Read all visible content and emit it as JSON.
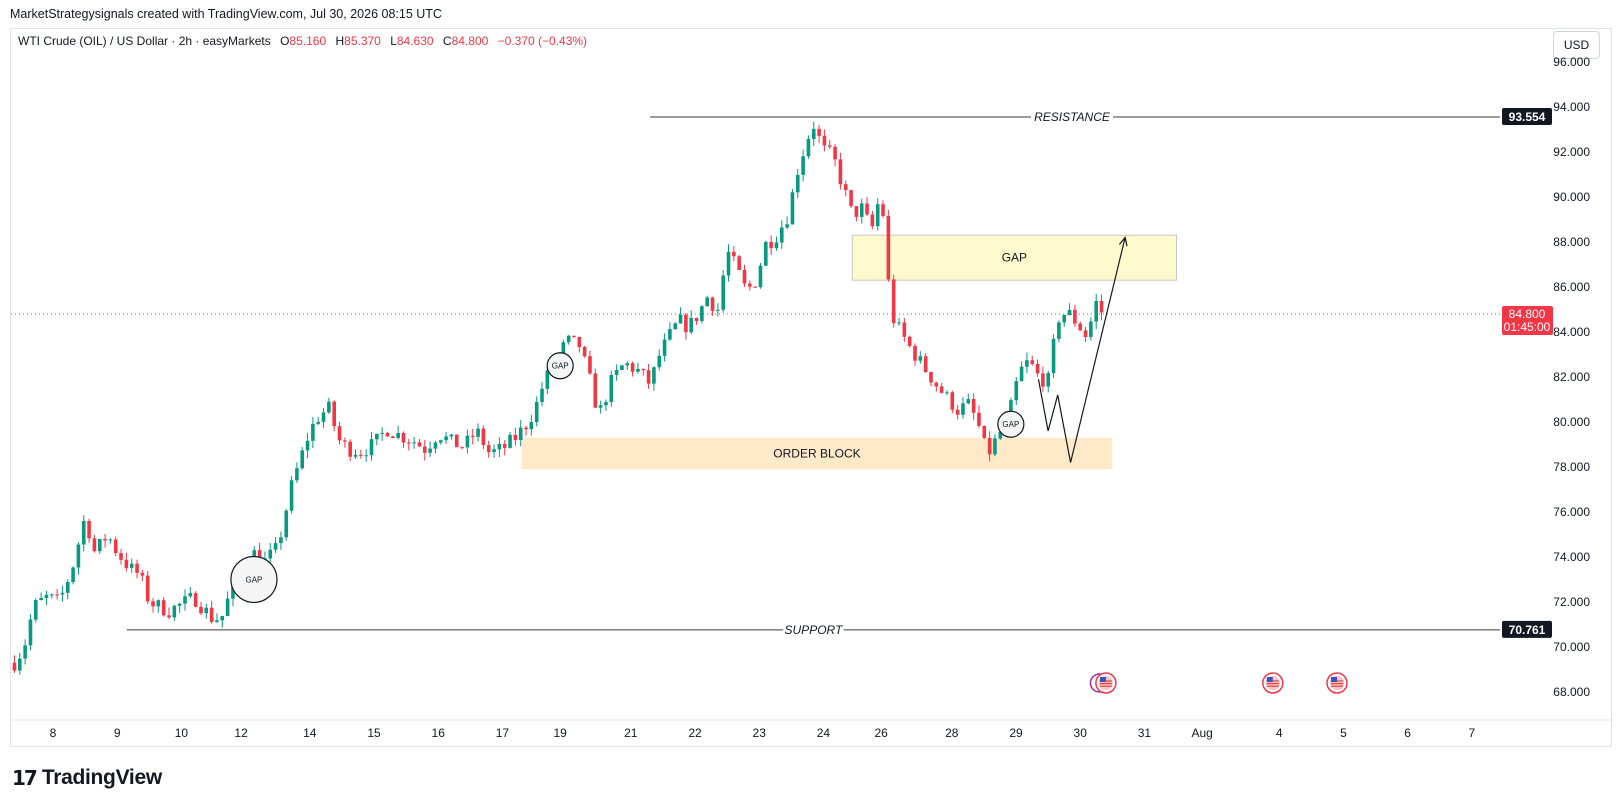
{
  "header": {
    "credit": "MarketStrategysignals created with TradingView.com, Jul 30, 2026 08:15 UTC",
    "symbol": "WTI Crude (OIL) / US Dollar · 2h · easyMarkets",
    "ohlc": [
      {
        "k": "O",
        "v": "85.160"
      },
      {
        "k": "H",
        "v": "85.370"
      },
      {
        "k": "L",
        "v": "84.630"
      },
      {
        "k": "C",
        "v": "84.800"
      }
    ],
    "change": "−0.370 (−0.43%)",
    "currency": "USD"
  },
  "branding": {
    "logo_text": "TradingView",
    "logo_icon": "tradingview-logo-icon"
  },
  "colors": {
    "up": "#089981",
    "down": "#f23645",
    "text": "#131722",
    "grid": "#e0e3eb"
  },
  "chart_data": {
    "type": "candlestick",
    "title": "",
    "ylim": [
      67,
      97
    ],
    "y_ticks": [
      "68.000",
      "70.000",
      "72.000",
      "74.000",
      "76.000",
      "78.000",
      "80.000",
      "82.000",
      "84.000",
      "86.000",
      "88.000",
      "90.000",
      "92.000",
      "94.000",
      "96.000"
    ],
    "x_ticks": [
      {
        "label": "8",
        "t": 0.0
      },
      {
        "label": "9",
        "t": 1.0
      },
      {
        "label": "10",
        "t": 2.0
      },
      {
        "label": "12",
        "t": 2.93
      },
      {
        "label": "14",
        "t": 4.0
      },
      {
        "label": "15",
        "t": 5.0
      },
      {
        "label": "16",
        "t": 6.0
      },
      {
        "label": "17",
        "t": 7.0
      },
      {
        "label": "19",
        "t": 7.9
      },
      {
        "label": "21",
        "t": 9.0
      },
      {
        "label": "22",
        "t": 10.0
      },
      {
        "label": "23",
        "t": 11.0
      },
      {
        "label": "24",
        "t": 12.0
      },
      {
        "label": "26",
        "t": 12.9
      },
      {
        "label": "28",
        "t": 14.0
      },
      {
        "label": "29",
        "t": 15.0
      },
      {
        "label": "30",
        "t": 16.0
      },
      {
        "label": "31",
        "t": 17.0
      },
      {
        "label": "Aug",
        "t": 17.9
      },
      {
        "label": "4",
        "t": 19.1
      },
      {
        "label": "5",
        "t": 20.1
      },
      {
        "label": "6",
        "t": 21.1
      },
      {
        "label": "7",
        "t": 22.1
      }
    ],
    "close_path": [
      [
        -0.6,
        69.3
      ],
      [
        -0.45,
        70.0
      ],
      [
        -0.3,
        71.8
      ],
      [
        -0.1,
        72.2
      ],
      [
        0.1,
        72.0
      ],
      [
        0.3,
        73.5
      ],
      [
        0.5,
        75.8
      ],
      [
        0.65,
        74.2
      ],
      [
        0.85,
        75.0
      ],
      [
        1.0,
        74.2
      ],
      [
        1.2,
        73.5
      ],
      [
        1.35,
        73.2
      ],
      [
        1.5,
        72.0
      ],
      [
        1.65,
        71.8
      ],
      [
        1.8,
        71.6
      ],
      [
        2.0,
        71.9
      ],
      [
        2.2,
        72.2
      ],
      [
        2.35,
        71.7
      ],
      [
        2.5,
        71.2
      ],
      [
        2.65,
        71.4
      ],
      [
        2.8,
        72.8
      ],
      [
        2.95,
        73.6
      ],
      [
        3.15,
        74.2
      ],
      [
        3.3,
        73.8
      ],
      [
        3.5,
        74.4
      ],
      [
        3.7,
        77.0
      ],
      [
        3.85,
        78.3
      ],
      [
        4.0,
        79.6
      ],
      [
        4.15,
        80.3
      ],
      [
        4.3,
        80.6
      ],
      [
        4.45,
        79.2
      ],
      [
        4.6,
        78.8
      ],
      [
        4.8,
        78.7
      ],
      [
        5.0,
        79.0
      ],
      [
        5.2,
        79.7
      ],
      [
        5.4,
        79.4
      ],
      [
        5.6,
        79.2
      ],
      [
        5.8,
        78.8
      ],
      [
        6.0,
        79.5
      ],
      [
        6.2,
        79.1
      ],
      [
        6.4,
        78.9
      ],
      [
        6.6,
        79.6
      ],
      [
        6.8,
        78.6
      ],
      [
        7.0,
        78.8
      ],
      [
        7.2,
        79.3
      ],
      [
        7.35,
        79.8
      ],
      [
        7.5,
        80.5
      ],
      [
        7.65,
        81.8
      ],
      [
        7.8,
        82.5
      ],
      [
        8.0,
        83.6
      ],
      [
        8.2,
        83.4
      ],
      [
        8.35,
        82.0
      ],
      [
        8.5,
        80.3
      ],
      [
        8.7,
        81.8
      ],
      [
        8.9,
        82.6
      ],
      [
        9.1,
        82.3
      ],
      [
        9.3,
        81.7
      ],
      [
        9.45,
        83.0
      ],
      [
        9.6,
        83.8
      ],
      [
        9.75,
        84.5
      ],
      [
        9.9,
        84.2
      ],
      [
        10.05,
        84.8
      ],
      [
        10.2,
        85.6
      ],
      [
        10.35,
        84.9
      ],
      [
        10.5,
        87.6
      ],
      [
        10.65,
        86.8
      ],
      [
        10.8,
        85.8
      ],
      [
        10.95,
        86.3
      ],
      [
        11.1,
        87.9
      ],
      [
        11.25,
        88.2
      ],
      [
        11.45,
        89.2
      ],
      [
        11.6,
        91.2
      ],
      [
        11.75,
        92.6
      ],
      [
        11.85,
        93.2
      ],
      [
        12.0,
        92.1
      ],
      [
        12.15,
        91.8
      ],
      [
        12.3,
        90.5
      ],
      [
        12.45,
        89.2
      ],
      [
        12.6,
        89.5
      ],
      [
        12.75,
        88.5
      ],
      [
        12.9,
        90.3
      ],
      [
        13.05,
        84.8
      ],
      [
        13.2,
        84.0
      ],
      [
        13.35,
        83.3
      ],
      [
        13.5,
        82.7
      ],
      [
        13.65,
        82.1
      ],
      [
        13.8,
        81.5
      ],
      [
        13.95,
        81.0
      ],
      [
        14.1,
        80.5
      ],
      [
        14.25,
        80.8
      ],
      [
        14.4,
        80.0
      ],
      [
        14.55,
        78.5
      ],
      [
        14.75,
        79.5
      ],
      [
        14.9,
        80.4
      ],
      [
        15.05,
        82.2
      ],
      [
        15.2,
        82.7
      ],
      [
        15.35,
        82.0
      ],
      [
        15.5,
        81.8
      ],
      [
        15.65,
        84.6
      ],
      [
        15.8,
        84.9
      ],
      [
        15.95,
        84.4
      ],
      [
        16.1,
        83.8
      ],
      [
        16.25,
        85.3
      ],
      [
        16.35,
        84.8
      ]
    ],
    "annotations": {
      "resistance": {
        "label": "RESISTANCE",
        "price": "93.554",
        "value": 93.554,
        "x_start": 9.3
      },
      "support": {
        "label": "SUPPORT",
        "price": "70.761",
        "value": 70.761,
        "x_start": 1.15
      },
      "gap_zone": {
        "label": "GAP",
        "x_from": 12.45,
        "x_to": 17.5,
        "y_from": 86.3,
        "y_to": 88.3
      },
      "order_block": {
        "label": "ORDER BLOCK",
        "x_from": 7.3,
        "x_to": 16.5,
        "y_from": 77.9,
        "y_to": 79.3
      },
      "gap_circles": [
        {
          "label": "GAP",
          "x": 3.13,
          "y": 73.0,
          "size": "large"
        },
        {
          "label": "GAP",
          "x": 7.9,
          "y": 82.5,
          "size": "small"
        },
        {
          "label": "GAP",
          "x": 14.92,
          "y": 79.9,
          "size": "small"
        }
      ],
      "projection_path": [
        [
          15.35,
          81.9
        ],
        [
          15.5,
          79.6
        ],
        [
          15.65,
          81.2
        ],
        [
          15.85,
          78.2
        ],
        [
          16.7,
          88.2
        ]
      ],
      "current_price": {
        "value": 84.8,
        "label": "84.800",
        "countdown": "01:45:00"
      }
    },
    "event_icons": [
      {
        "name": "us-flag-icon",
        "x": 16.4
      },
      {
        "name": "us-flag-icon",
        "x": 19.0
      },
      {
        "name": "us-flag-icon",
        "x": 20.0
      }
    ],
    "event_marker": {
      "name": "event-c-icon",
      "x": 16.3
    }
  }
}
